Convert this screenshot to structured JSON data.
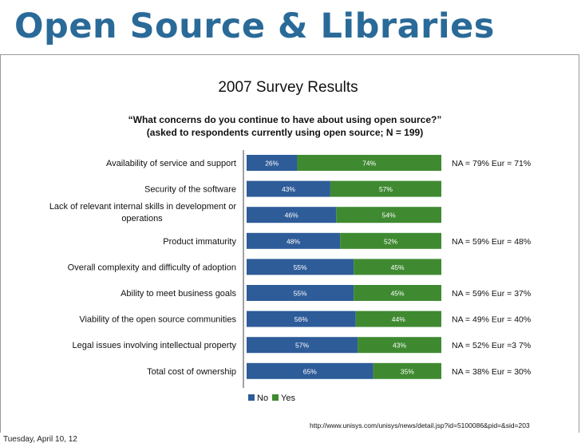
{
  "slide": {
    "title": "Open Source & Libraries",
    "footer_date": "Tuesday, April 10, 12"
  },
  "chart_data": {
    "type": "bar",
    "stacked": true,
    "orientation": "horizontal",
    "title": "2007 Survey Results",
    "question": "“What concerns do you continue to have about using open source?”",
    "subtitle": "(asked to respondents currently using open source; N = 199)",
    "categories": [
      [
        "Availability of service and support"
      ],
      [
        "Security of the software"
      ],
      [
        "Lack of relevant internal skills in development or",
        "operations"
      ],
      [
        "Product immaturity"
      ],
      [
        "Overall complexity and difficulty of adoption"
      ],
      [
        "Ability to meet business goals"
      ],
      [
        "Viability of the open source communities"
      ],
      [
        "Legal issues involving intellectual property"
      ],
      [
        "Total cost of ownership"
      ]
    ],
    "series": [
      {
        "name": "No",
        "color": "#2e5c99",
        "values": [
          26,
          43,
          46,
          48,
          55,
          55,
          56,
          57,
          65
        ]
      },
      {
        "name": "Yes",
        "color": "#3f8a31",
        "values": [
          74,
          57,
          54,
          52,
          45,
          45,
          44,
          43,
          35
        ]
      }
    ],
    "value_suffix": "%",
    "annotations": [
      "NA = 79% Eur = 71%",
      "",
      "",
      "NA = 59% Eur = 48%",
      "",
      "NA = 59% Eur = 37%",
      "NA = 49% Eur = 40%",
      "NA = 52% Eur =3 7%",
      "NA = 38% Eur = 30%"
    ],
    "legend": [
      "No",
      "Yes"
    ],
    "legend_position": "bottom",
    "source": "http://www.unisys.com/unisys/news/detail.jsp?id=5100086&pid=&sid=203",
    "xlim": [
      0,
      100
    ]
  }
}
